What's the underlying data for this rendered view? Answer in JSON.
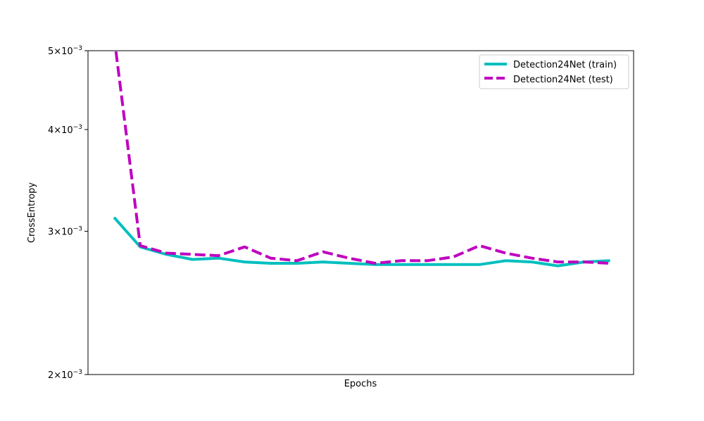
{
  "chart_data": {
    "type": "line",
    "title": "",
    "xlabel": "Epochs",
    "ylabel": "CrossEntropy",
    "yscale": "log",
    "ylim": [
      0.002,
      0.005
    ],
    "xlim": [
      0,
      20.9
    ],
    "grid": false,
    "legend_position": "top-right",
    "y_ticks": [
      {
        "value": 0.002,
        "mantissa": "2",
        "base": "10",
        "exp": "−3"
      },
      {
        "value": 0.003,
        "mantissa": "3",
        "base": "10",
        "exp": "−3"
      },
      {
        "value": 0.004,
        "mantissa": "4",
        "base": "10",
        "exp": "−3"
      },
      {
        "value": 0.005,
        "mantissa": "5",
        "base": "10",
        "exp": "−3"
      }
    ],
    "x": [
      1,
      2,
      3,
      4,
      5,
      6,
      7,
      8,
      9,
      10,
      11,
      12,
      13,
      14,
      15,
      16,
      17,
      18,
      19,
      20
    ],
    "series": [
      {
        "name": "Detection24Net (train)",
        "color": "#00bfbf",
        "style": "solid",
        "values": [
          0.00312,
          0.00287,
          0.00281,
          0.00277,
          0.00278,
          0.00275,
          0.00274,
          0.00274,
          0.00275,
          0.00274,
          0.00273,
          0.00273,
          0.00273,
          0.00273,
          0.00273,
          0.00276,
          0.00275,
          0.00272,
          0.00275,
          0.00276
        ]
      },
      {
        "name": "Detection24Net (test)",
        "color": "#bf00bf",
        "style": "dashed",
        "values": [
          0.0052,
          0.00288,
          0.00282,
          0.00281,
          0.0028,
          0.00287,
          0.00278,
          0.00276,
          0.00283,
          0.00278,
          0.00274,
          0.00276,
          0.00276,
          0.00279,
          0.00288,
          0.00282,
          0.00278,
          0.00275,
          0.00275,
          0.00274
        ]
      }
    ]
  }
}
